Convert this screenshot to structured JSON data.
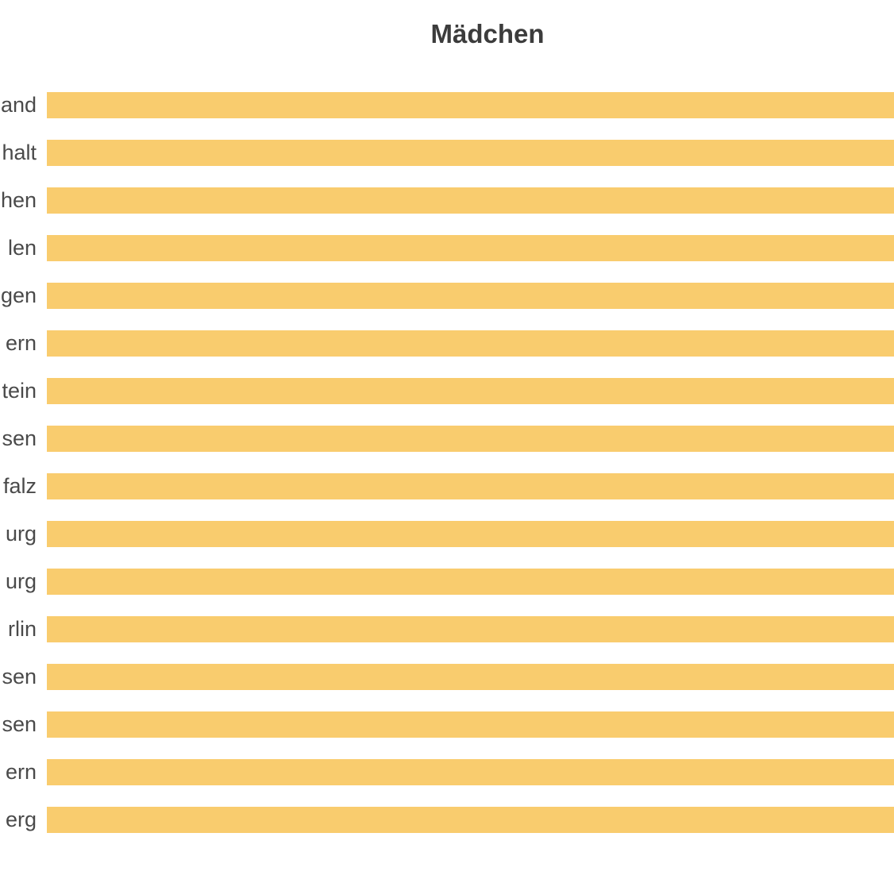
{
  "chart_data": {
    "type": "bar",
    "orientation": "horizontal",
    "title": "Mädchen",
    "categories": [
      "and",
      "halt",
      "hen",
      "len",
      "gen",
      "ern",
      "tein",
      "sen",
      "falz",
      "urg",
      "urg",
      "rlin",
      "sen",
      "sen",
      "ern",
      "erg"
    ],
    "categories_note": "row labels are clipped at the left edge of the screenshot; only these trailing fragments are visible",
    "values": [
      1,
      1,
      1,
      1,
      1,
      1,
      1,
      1,
      1,
      1,
      1,
      1,
      1,
      1,
      1,
      1
    ],
    "values_note": "no value axis is visible; every bar runs past the right crop edge with equal visible length (normalized to 1)",
    "xlim": [
      0,
      1
    ],
    "grid": "off",
    "legend": "none",
    "colors": {
      "bar": "#f9cc6e",
      "title_text": "#3c3c3c",
      "label_text": "#4a4a4a",
      "background": "#ffffff"
    }
  }
}
